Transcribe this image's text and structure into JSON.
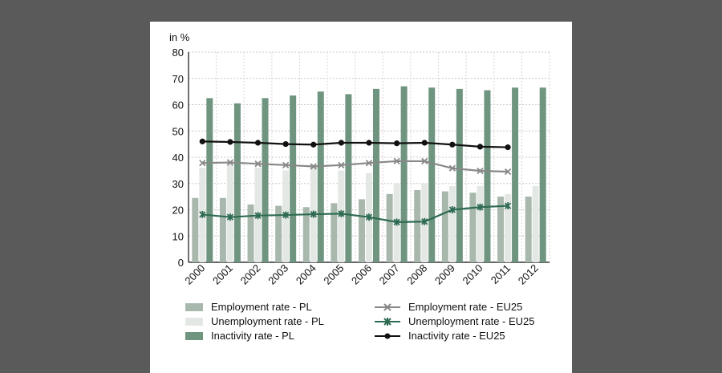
{
  "chart_data": {
    "type": "bar",
    "unit_label": "in %",
    "categories": [
      "2000",
      "2001",
      "2002",
      "2003",
      "2004",
      "2005",
      "2006",
      "2007",
      "2008",
      "2009",
      "2010",
      "2011",
      "2012"
    ],
    "ylim": [
      0,
      80
    ],
    "yticks": [
      0,
      10,
      20,
      30,
      40,
      50,
      60,
      70,
      80
    ],
    "grid": true,
    "bar_series": [
      {
        "name": "Employment rate - PL",
        "color": "#a8b8ad",
        "values": [
          24.5,
          24.5,
          22.0,
          21.5,
          21.0,
          22.5,
          24.0,
          26.0,
          27.5,
          27.0,
          26.5,
          25.0,
          25.0
        ]
      },
      {
        "name": "Unemployment rate - PL",
        "color": "#e4e8e5",
        "values": [
          36.0,
          37.5,
          36.0,
          35.0,
          37.0,
          35.0,
          34.0,
          30.0,
          30.0,
          29.0,
          29.0,
          26.0,
          29.0
        ]
      },
      {
        "name": "Inactivity rate - PL",
        "color": "#6f9580",
        "values": [
          62.5,
          60.5,
          62.5,
          63.5,
          65.0,
          64.0,
          66.0,
          67.0,
          66.5,
          66.0,
          65.5,
          66.5,
          66.5
        ]
      }
    ],
    "line_series": [
      {
        "name": "Employment rate - EU25",
        "color": "#888888",
        "marker": "x",
        "values": [
          37.8,
          38.0,
          37.5,
          37.0,
          36.5,
          37.0,
          37.8,
          38.5,
          38.5,
          35.8,
          34.8,
          34.5,
          null
        ]
      },
      {
        "name": "Unemployment rate - EU25",
        "color": "#2e6b52",
        "marker": "star",
        "values": [
          18.2,
          17.2,
          17.8,
          18.0,
          18.3,
          18.5,
          17.2,
          15.3,
          15.5,
          20.0,
          21.0,
          21.5,
          null
        ]
      },
      {
        "name": "Inactivity rate - EU25",
        "color": "#111111",
        "marker": "dot",
        "values": [
          46.0,
          45.8,
          45.5,
          45.0,
          44.8,
          45.5,
          45.5,
          45.3,
          45.5,
          44.8,
          44.0,
          43.8,
          null
        ]
      }
    ]
  }
}
